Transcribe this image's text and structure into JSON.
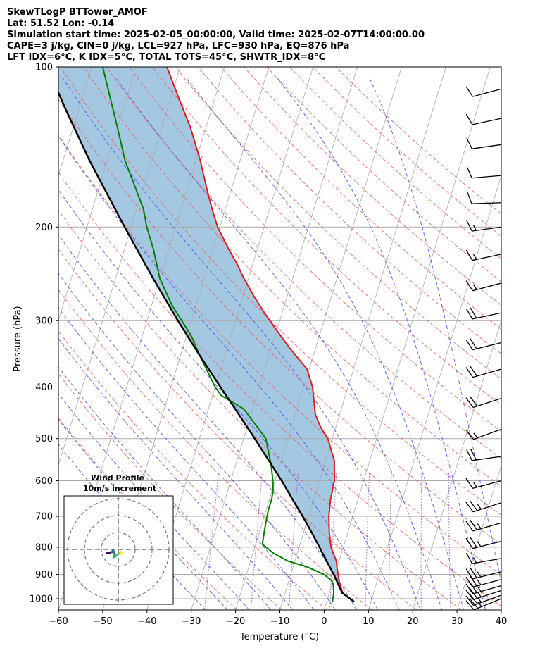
{
  "title_lines": [
    "SkewTLogP BTTower_AMOF",
    "Lat: 51.52   Lon: -0.14",
    "Simulation start time: 2025-02-05_00:00:00, Valid time: 2025-02-07T14:00:00.00",
    "CAPE=3 j/kg, CIN=0 j/kg, LCL=927 hPa, LFC=930 hPa, EQ=876 hPa",
    "LFT IDX=6°C, K IDX=5°C, TOTAL TOTS=45°C, SHWTR_IDX=8°C"
  ],
  "chart_data": {
    "type": "line",
    "subtype": "skewt-logp",
    "xlabel": "Temperature (°C)",
    "ylabel": "Pressure (hPa)",
    "xlim": [
      -60,
      40
    ],
    "ylim": [
      1050,
      100
    ],
    "y_scale": "log",
    "x_ticks": [
      -60,
      -50,
      -40,
      -30,
      -20,
      -10,
      0,
      10,
      20,
      30,
      40
    ],
    "x_tick_labels": [
      "−60",
      "−50",
      "−40",
      "−30",
      "−20",
      "−10",
      "0",
      "10",
      "20",
      "30",
      "40"
    ],
    "y_ticks": [
      1000,
      900,
      800,
      700,
      600,
      500,
      400,
      300,
      200,
      100
    ],
    "y_tick_labels": [
      "1000",
      "900",
      "800",
      "700",
      "600",
      "500",
      "400",
      "300",
      "200",
      "100"
    ],
    "grid": true,
    "colors": {
      "temperature": "#e41a1c",
      "dewpoint": "#008000",
      "parcel": "#000000",
      "cape_fill": "#7eb1d4",
      "dry_adiabat": "#f05a5a",
      "moist_adiabat": "#4b4bf0",
      "mixing_ratio": "#9b4fc8",
      "isotherm": "#aaaaaa"
    },
    "series": [
      {
        "key": "temperature",
        "points": [
          [
            1013,
            6.2
          ],
          [
            975,
            3.0
          ],
          [
            930,
            1.5
          ],
          [
            875,
            0.0
          ],
          [
            850,
            -0.6
          ],
          [
            800,
            -2.8
          ],
          [
            750,
            -4.2
          ],
          [
            700,
            -5.4
          ],
          [
            650,
            -6.2
          ],
          [
            600,
            -6.6
          ],
          [
            550,
            -8.0
          ],
          [
            500,
            -11.0
          ],
          [
            475,
            -13.5
          ],
          [
            450,
            -15.5
          ],
          [
            400,
            -18.0
          ],
          [
            370,
            -20.5
          ],
          [
            340,
            -25.5
          ],
          [
            310,
            -30.5
          ],
          [
            290,
            -34.0
          ],
          [
            270,
            -37.5
          ],
          [
            250,
            -41.0
          ],
          [
            235,
            -43.5
          ],
          [
            220,
            -46.5
          ],
          [
            200,
            -50.5
          ],
          [
            185,
            -53.0
          ],
          [
            170,
            -55.5
          ],
          [
            150,
            -59.0
          ],
          [
            130,
            -63.5
          ],
          [
            115,
            -68.0
          ],
          [
            100,
            -73.0
          ]
        ]
      },
      {
        "key": "dewpoint",
        "points": [
          [
            1013,
            1.3
          ],
          [
            975,
            1.0
          ],
          [
            940,
            0.3
          ],
          [
            925,
            -0.3
          ],
          [
            900,
            -2.5
          ],
          [
            870,
            -7.0
          ],
          [
            850,
            -11.5
          ],
          [
            820,
            -15.5
          ],
          [
            790,
            -18.5
          ],
          [
            760,
            -18.8
          ],
          [
            720,
            -19.2
          ],
          [
            680,
            -19.5
          ],
          [
            650,
            -19.5
          ],
          [
            625,
            -19.8
          ],
          [
            600,
            -20.5
          ],
          [
            560,
            -22.0
          ],
          [
            500,
            -25.0
          ],
          [
            440,
            -32.0
          ],
          [
            415,
            -38.0
          ],
          [
            400,
            -40.0
          ],
          [
            350,
            -45.5
          ],
          [
            320,
            -49.0
          ],
          [
            280,
            -55.5
          ],
          [
            250,
            -60.0
          ],
          [
            220,
            -63.5
          ],
          [
            200,
            -66.5
          ],
          [
            185,
            -68.5
          ],
          [
            170,
            -71.5
          ],
          [
            150,
            -76.0
          ],
          [
            130,
            -80.0
          ],
          [
            115,
            -83.5
          ],
          [
            100,
            -87.5
          ]
        ]
      },
      {
        "key": "parcel",
        "points": [
          [
            1013,
            6.2
          ],
          [
            975,
            2.9
          ],
          [
            930,
            1.0
          ],
          [
            900,
            -0.3
          ],
          [
            850,
            -2.8
          ],
          [
            800,
            -5.4
          ],
          [
            750,
            -8.2
          ],
          [
            700,
            -11.3
          ],
          [
            650,
            -14.8
          ],
          [
            600,
            -18.5
          ],
          [
            550,
            -22.8
          ],
          [
            500,
            -27.5
          ],
          [
            450,
            -32.8
          ],
          [
            400,
            -38.8
          ],
          [
            350,
            -45.5
          ],
          [
            300,
            -53.0
          ],
          [
            250,
            -61.5
          ],
          [
            200,
            -71.5
          ],
          [
            150,
            -84.0
          ],
          [
            120,
            -93.0
          ],
          [
            100,
            -100.0
          ]
        ]
      }
    ],
    "wind_barbs": [
      {
        "p": 1000,
        "speed_kt": 25,
        "dir": 248
      },
      {
        "p": 985,
        "speed_kt": 25,
        "dir": 250
      },
      {
        "p": 965,
        "speed_kt": 25,
        "dir": 252
      },
      {
        "p": 945,
        "speed_kt": 25,
        "dir": 254
      },
      {
        "p": 920,
        "speed_kt": 25,
        "dir": 255
      },
      {
        "p": 890,
        "speed_kt": 25,
        "dir": 256
      },
      {
        "p": 840,
        "speed_kt": 15,
        "dir": 260
      },
      {
        "p": 780,
        "speed_kt": 25,
        "dir": 256
      },
      {
        "p": 720,
        "speed_kt": 25,
        "dir": 254
      },
      {
        "p": 660,
        "speed_kt": 25,
        "dir": 252
      },
      {
        "p": 600,
        "speed_kt": 15,
        "dir": 255
      },
      {
        "p": 540,
        "speed_kt": 20,
        "dir": 262
      },
      {
        "p": 480,
        "speed_kt": 15,
        "dir": 250
      },
      {
        "p": 420,
        "speed_kt": 20,
        "dir": 252
      },
      {
        "p": 370,
        "speed_kt": 20,
        "dir": 254
      },
      {
        "p": 330,
        "speed_kt": 20,
        "dir": 256
      },
      {
        "p": 290,
        "speed_kt": 20,
        "dir": 258
      },
      {
        "p": 255,
        "speed_kt": 15,
        "dir": 255
      },
      {
        "p": 225,
        "speed_kt": 15,
        "dir": 258
      },
      {
        "p": 200,
        "speed_kt": 15,
        "dir": 262
      },
      {
        "p": 180,
        "speed_kt": 10,
        "dir": 268
      },
      {
        "p": 160,
        "speed_kt": 10,
        "dir": 265
      },
      {
        "p": 140,
        "speed_kt": 10,
        "dir": 262
      },
      {
        "p": 125,
        "speed_kt": 10,
        "dir": 258
      },
      {
        "p": 110,
        "speed_kt": 10,
        "dir": 255
      }
    ],
    "hodograph": {
      "title": "Wind Profile",
      "subtitle": "10m/s increment",
      "ring_increment_ms": 10,
      "points": [
        [
          -6.5,
          -2.2
        ],
        [
          -5.5,
          -2.0
        ],
        [
          -4.5,
          -1.8
        ],
        [
          -3.5,
          -1.5
        ],
        [
          -3.2,
          -0.5
        ],
        [
          -2.5,
          -1.5
        ],
        [
          -2.0,
          -3.0
        ],
        [
          -2.5,
          -4.5
        ],
        [
          -1.5,
          -4.0
        ],
        [
          -0.5,
          -3.0
        ],
        [
          1.2,
          -2.0
        ],
        [
          2.0,
          -2.5
        ],
        [
          1.5,
          -1.5
        ]
      ]
    }
  }
}
